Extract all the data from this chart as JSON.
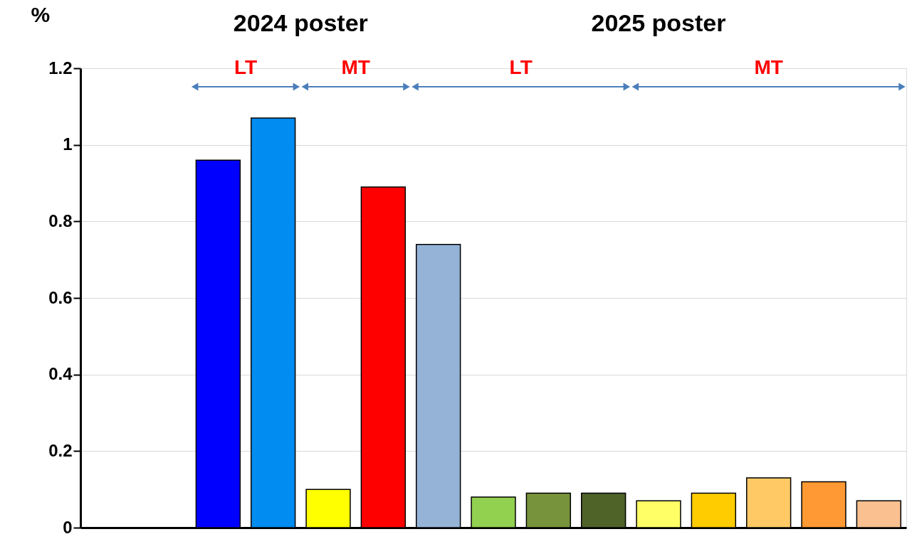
{
  "chart_data": {
    "type": "bar",
    "ylabel": "%",
    "categories": [
      null,
      null,
      null,
      null,
      null,
      null,
      null,
      null,
      null,
      null,
      null,
      null,
      null,
      null,
      null
    ],
    "values": [
      null,
      null,
      0.96,
      1.07,
      0.1,
      0.89,
      0.74,
      0.08,
      0.09,
      0.09,
      0.07,
      0.09,
      0.13,
      0.12,
      0.07
    ],
    "colors": [
      null,
      null,
      "#0000ff",
      "#008cf0",
      "#ffff00",
      "#ff0000",
      "#95b3d7",
      "#92d050",
      "#77933c",
      "#4f6228",
      "#ffff66",
      "#ffcc00",
      "#ffc966",
      "#ff9933",
      "#fac090"
    ],
    "ylim": [
      0,
      1.2
    ],
    "yticks": [
      0,
      0.2,
      0.4,
      0.6,
      0.8,
      1,
      1.2
    ],
    "grid": "y",
    "tick_labels": "y",
    "annotations": [
      "2024 poster",
      "2025 poster",
      "LT",
      "MT",
      "LT",
      "MT"
    ]
  }
}
